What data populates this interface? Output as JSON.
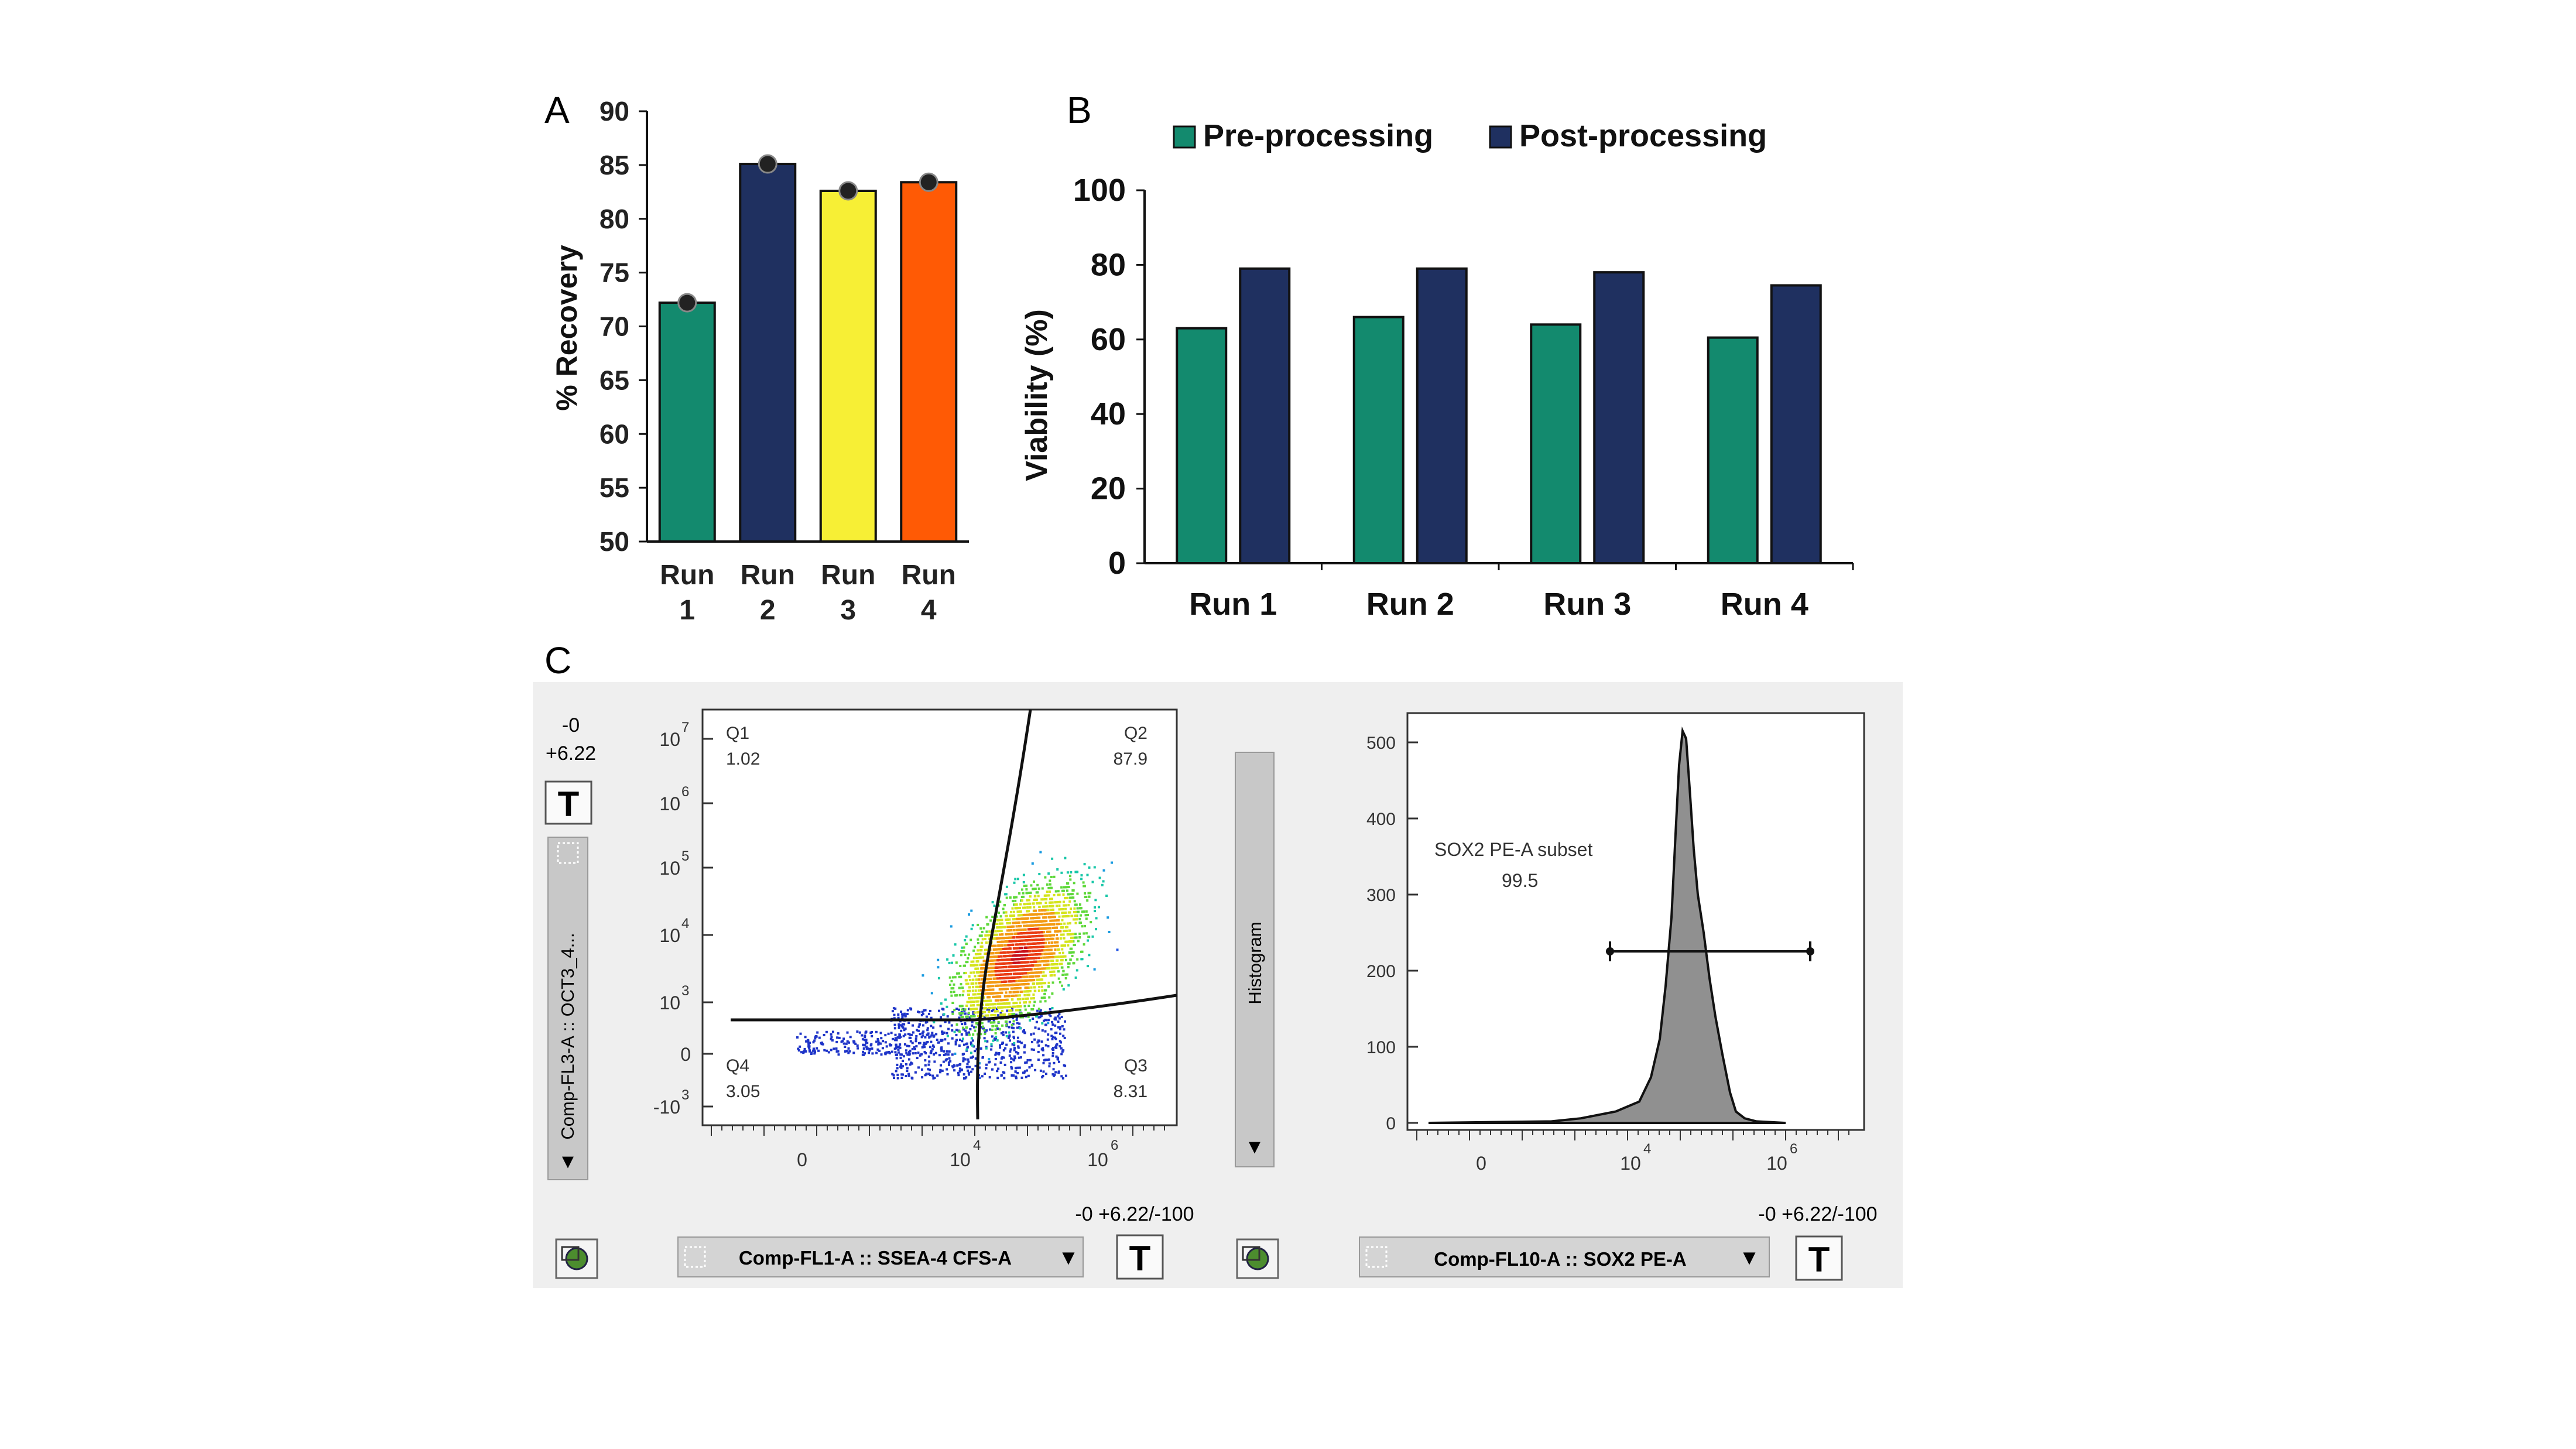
{
  "chart_data": [
    {
      "panel": "A",
      "type": "bar",
      "ylabel": "% Recovery",
      "ylim": [
        50,
        90
      ],
      "yticks": [
        50,
        55,
        60,
        65,
        70,
        75,
        80,
        85,
        90
      ],
      "categories": [
        [
          "Run",
          "1"
        ],
        [
          "Run",
          "2"
        ],
        [
          "Run",
          "3"
        ],
        [
          "Run",
          "4"
        ]
      ],
      "values": [
        72.2,
        85.1,
        82.6,
        83.4
      ],
      "colors": [
        "#138a6e",
        "#1f3060",
        "#f7ef35",
        "#ff5a05"
      ],
      "points": true
    },
    {
      "panel": "B",
      "type": "bar",
      "ylabel": "Viability (%)",
      "ylim": [
        0,
        100
      ],
      "yticks": [
        0,
        20,
        40,
        60,
        80,
        100
      ],
      "categories": [
        "Run 1",
        "Run 2",
        "Run 3",
        "Run 4"
      ],
      "series": [
        {
          "name": "Pre-processing",
          "color": "#138a6e",
          "values": [
            63,
            66,
            64,
            60.5
          ]
        },
        {
          "name": "Post-processing",
          "color": "#1f3060",
          "values": [
            79,
            79,
            78,
            74.5
          ]
        }
      ],
      "legend": "top"
    },
    {
      "panel": "C-left",
      "type": "scatter",
      "x_axis": "Comp-FL1-A :: SSEA-4 CFS-A",
      "y_axis": "Comp-FL3-A :: OCT3_4...",
      "x_ticks": [
        {
          "base": "0",
          "exp": ""
        },
        {
          "base": "10",
          "exp": "4"
        },
        {
          "base": "10",
          "exp": "6"
        }
      ],
      "y_ticks": [
        {
          "base": "10",
          "exp": "7"
        },
        {
          "base": "10",
          "exp": "6"
        },
        {
          "base": "10",
          "exp": "5"
        },
        {
          "base": "10",
          "exp": "4"
        },
        {
          "base": "10",
          "exp": "3"
        },
        {
          "base": "0",
          "exp": ""
        },
        {
          "base": "-10",
          "exp": "3"
        }
      ],
      "quadrants": [
        {
          "name": "Q1",
          "value": "1.02"
        },
        {
          "name": "Q2",
          "value": "87.9"
        },
        {
          "name": "Q3",
          "value": "8.31"
        },
        {
          "name": "Q4",
          "value": "3.05"
        }
      ]
    },
    {
      "panel": "C-right",
      "type": "area",
      "x_axis": "Comp-FL10-A :: SOX2 PE-A",
      "y_ticks": [
        "500",
        "400",
        "300",
        "200",
        "100",
        "0"
      ],
      "ylim": [
        0,
        520
      ],
      "x_ticks": [
        {
          "base": "0",
          "exp": ""
        },
        {
          "base": "10",
          "exp": "4"
        },
        {
          "base": "10",
          "exp": "6"
        }
      ],
      "gate_label": "SOX2 PE-A subset",
      "gate_value": "99.5"
    }
  ],
  "panel_labels": {
    "a": "A",
    "b": "B",
    "c": "C"
  },
  "flow_ui": {
    "left_top_values": [
      "-0",
      "+6.22"
    ],
    "text_button": "T",
    "side_select_label": "Comp-FL3-A :: OCT3_4...",
    "histogram_label": "Histogram",
    "range_value": "-0 +6.22/-100",
    "bottom_select_left": "Comp-FL1-A :: SSEA-4 CFS-A",
    "bottom_select_right": "Comp-FL10-A :: SOX2 PE-A",
    "dropdown_glyph": "▼"
  }
}
